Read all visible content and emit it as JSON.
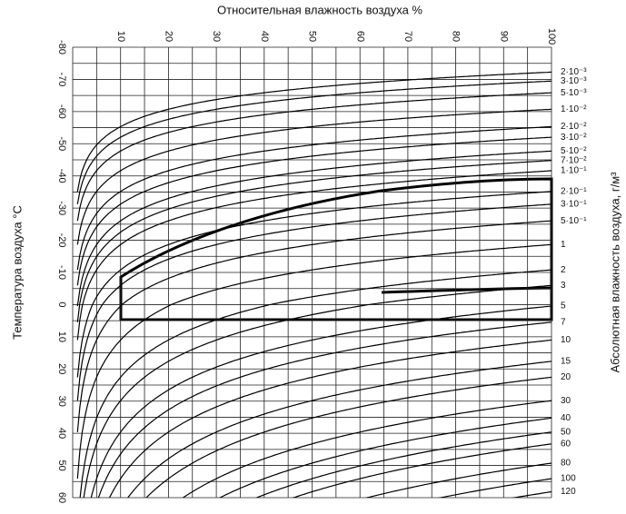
{
  "chart_data": {
    "type": "nomogram",
    "xlabel": "Относительная влажность воздуха %",
    "ylabel": "Температура воздуха °C",
    "y2label": "Абсолютная влажность воздуха, г/м³",
    "xlim": [
      0,
      100
    ],
    "xticks": [
      10,
      20,
      30,
      40,
      50,
      60,
      70,
      80,
      90,
      100
    ],
    "xgrid": [
      0,
      5,
      10,
      15,
      20,
      25,
      30,
      35,
      40,
      45,
      50,
      55,
      60,
      65,
      70,
      75,
      80,
      85,
      90,
      95,
      100
    ],
    "ylim": [
      -80,
      60
    ],
    "yticks": [
      -80,
      -70,
      -60,
      -50,
      -40,
      -30,
      -20,
      -10,
      0,
      10,
      20,
      30,
      40,
      50,
      60
    ],
    "ygrid": [
      -80,
      -75,
      -70,
      -65,
      -60,
      -55,
      -50,
      -45,
      -40,
      -35,
      -30,
      -25,
      -20,
      -15,
      -10,
      -5,
      0,
      5,
      10,
      15,
      20,
      25,
      30,
      35,
      40,
      45,
      50,
      55,
      60
    ],
    "y2ticks": [
      {
        "value": 0.002,
        "label": "2·10⁻³"
      },
      {
        "value": 0.003,
        "label": "3·10⁻³"
      },
      {
        "value": 0.005,
        "label": "5·10⁻³"
      },
      {
        "value": 0.01,
        "label": "1·10⁻²"
      },
      {
        "value": 0.02,
        "label": "2·10⁻²"
      },
      {
        "value": 0.03,
        "label": "3·10⁻²"
      },
      {
        "value": 0.05,
        "label": "5·10⁻²"
      },
      {
        "value": 0.07,
        "label": "7·10⁻²"
      },
      {
        "value": 0.1,
        "label": "1·10⁻¹"
      },
      {
        "value": 0.2,
        "label": "2·10⁻¹"
      },
      {
        "value": 0.3,
        "label": "3·10⁻¹"
      },
      {
        "value": 0.5,
        "label": "5·10⁻¹"
      },
      1,
      2,
      3,
      5,
      7,
      10,
      15,
      20,
      30,
      40,
      50,
      60,
      80,
      100,
      120
    ],
    "color": "#000000",
    "grid": true
  }
}
